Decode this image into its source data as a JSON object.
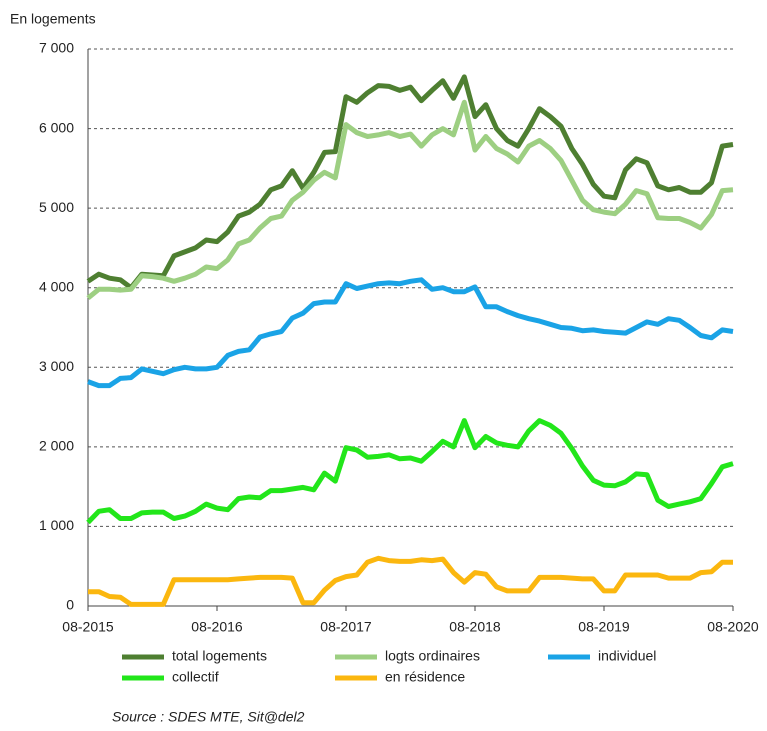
{
  "chart_data": {
    "type": "line",
    "y_label": "En logements",
    "source": "Source : SDES MTE, Sit@del2",
    "categories": [
      "08-2015",
      null,
      null,
      null,
      null,
      null,
      null,
      null,
      null,
      null,
      null,
      null,
      "08-2016",
      null,
      null,
      null,
      null,
      null,
      null,
      null,
      null,
      null,
      null,
      null,
      "08-2017",
      null,
      null,
      null,
      null,
      null,
      null,
      null,
      null,
      null,
      null,
      null,
      "08-2018",
      null,
      null,
      null,
      null,
      null,
      null,
      null,
      null,
      null,
      null,
      null,
      "08-2019",
      null,
      null,
      null,
      null,
      null,
      null,
      null,
      null,
      null,
      null,
      null,
      "08-2020"
    ],
    "ylim": [
      0,
      7000
    ],
    "yticks": [
      0,
      {
        "value": 1000,
        "label": "1 000"
      },
      {
        "value": 2000,
        "label": "2 000"
      },
      {
        "value": 3000,
        "label": "3 000"
      },
      {
        "value": 4000,
        "label": "4 000"
      },
      {
        "value": 5000,
        "label": "5 000"
      },
      {
        "value": 6000,
        "label": "6 000"
      },
      {
        "value": 7000,
        "label": "7 000"
      }
    ],
    "grid": true,
    "series": [
      {
        "name": "total logements",
        "color": "#4e7f31",
        "values": [
          4080,
          4170,
          4120,
          4100,
          4000,
          4170,
          4160,
          4150,
          4400,
          4450,
          4500,
          4600,
          4580,
          4700,
          4900,
          4950,
          5050,
          5230,
          5280,
          5470,
          5250,
          5450,
          5700,
          5710,
          6400,
          6330,
          6450,
          6540,
          6530,
          6480,
          6520,
          6350,
          6480,
          6600,
          6380,
          6650,
          6150,
          6300,
          6000,
          5850,
          5780,
          6000,
          6250,
          6150,
          6030,
          5750,
          5550,
          5300,
          5150,
          5130,
          5480,
          5620,
          5570,
          5280,
          5230,
          5260,
          5200,
          5200,
          5320,
          5780,
          5800
        ]
      },
      {
        "name": "logts ordinaires",
        "color": "#9dcf82",
        "values": [
          3870,
          3980,
          3980,
          3970,
          3980,
          4150,
          4140,
          4120,
          4080,
          4120,
          4170,
          4260,
          4240,
          4350,
          4550,
          4600,
          4750,
          4870,
          4900,
          5100,
          5200,
          5350,
          5450,
          5380,
          6050,
          5950,
          5900,
          5920,
          5950,
          5900,
          5930,
          5780,
          5920,
          6000,
          5920,
          6330,
          5730,
          5900,
          5750,
          5680,
          5580,
          5780,
          5850,
          5750,
          5600,
          5350,
          5100,
          4980,
          4950,
          4930,
          5050,
          5220,
          5180,
          4880,
          4870,
          4870,
          4820,
          4750,
          4920,
          5220,
          5230
        ]
      },
      {
        "name": "individuel",
        "color": "#1aa3e6",
        "values": [
          2820,
          2770,
          2770,
          2860,
          2870,
          2980,
          2950,
          2920,
          2970,
          3000,
          2980,
          2980,
          3000,
          3150,
          3200,
          3220,
          3380,
          3420,
          3450,
          3620,
          3680,
          3800,
          3820,
          3820,
          4050,
          3990,
          4020,
          4050,
          4060,
          4050,
          4080,
          4100,
          3980,
          4000,
          3950,
          3950,
          4010,
          3760,
          3760,
          3700,
          3650,
          3610,
          3580,
          3540,
          3500,
          3490,
          3460,
          3470,
          3450,
          3440,
          3430,
          3500,
          3570,
          3540,
          3610,
          3590,
          3500,
          3400,
          3370,
          3470,
          3450
        ]
      },
      {
        "name": "collectif",
        "color": "#22e61a",
        "values": [
          1050,
          1190,
          1210,
          1100,
          1100,
          1170,
          1180,
          1180,
          1100,
          1130,
          1190,
          1280,
          1230,
          1210,
          1350,
          1370,
          1360,
          1450,
          1450,
          1470,
          1490,
          1460,
          1670,
          1570,
          1990,
          1960,
          1870,
          1880,
          1900,
          1850,
          1860,
          1820,
          1940,
          2070,
          2000,
          2330,
          1990,
          2130,
          2050,
          2020,
          2000,
          2200,
          2330,
          2270,
          2170,
          1980,
          1760,
          1580,
          1520,
          1510,
          1560,
          1660,
          1650,
          1330,
          1250,
          1280,
          1310,
          1350,
          1540,
          1750,
          1790
        ]
      },
      {
        "name": "en résidence",
        "color": "#fbb70f",
        "values": [
          180,
          180,
          120,
          110,
          20,
          20,
          20,
          20,
          330,
          330,
          330,
          330,
          330,
          330,
          340,
          350,
          360,
          360,
          360,
          350,
          40,
          40,
          200,
          320,
          370,
          390,
          550,
          600,
          570,
          560,
          560,
          580,
          570,
          590,
          420,
          300,
          420,
          400,
          240,
          190,
          190,
          190,
          360,
          360,
          360,
          350,
          340,
          340,
          190,
          190,
          390,
          390,
          390,
          390,
          350,
          350,
          350,
          420,
          430,
          550,
          550
        ]
      }
    ]
  }
}
